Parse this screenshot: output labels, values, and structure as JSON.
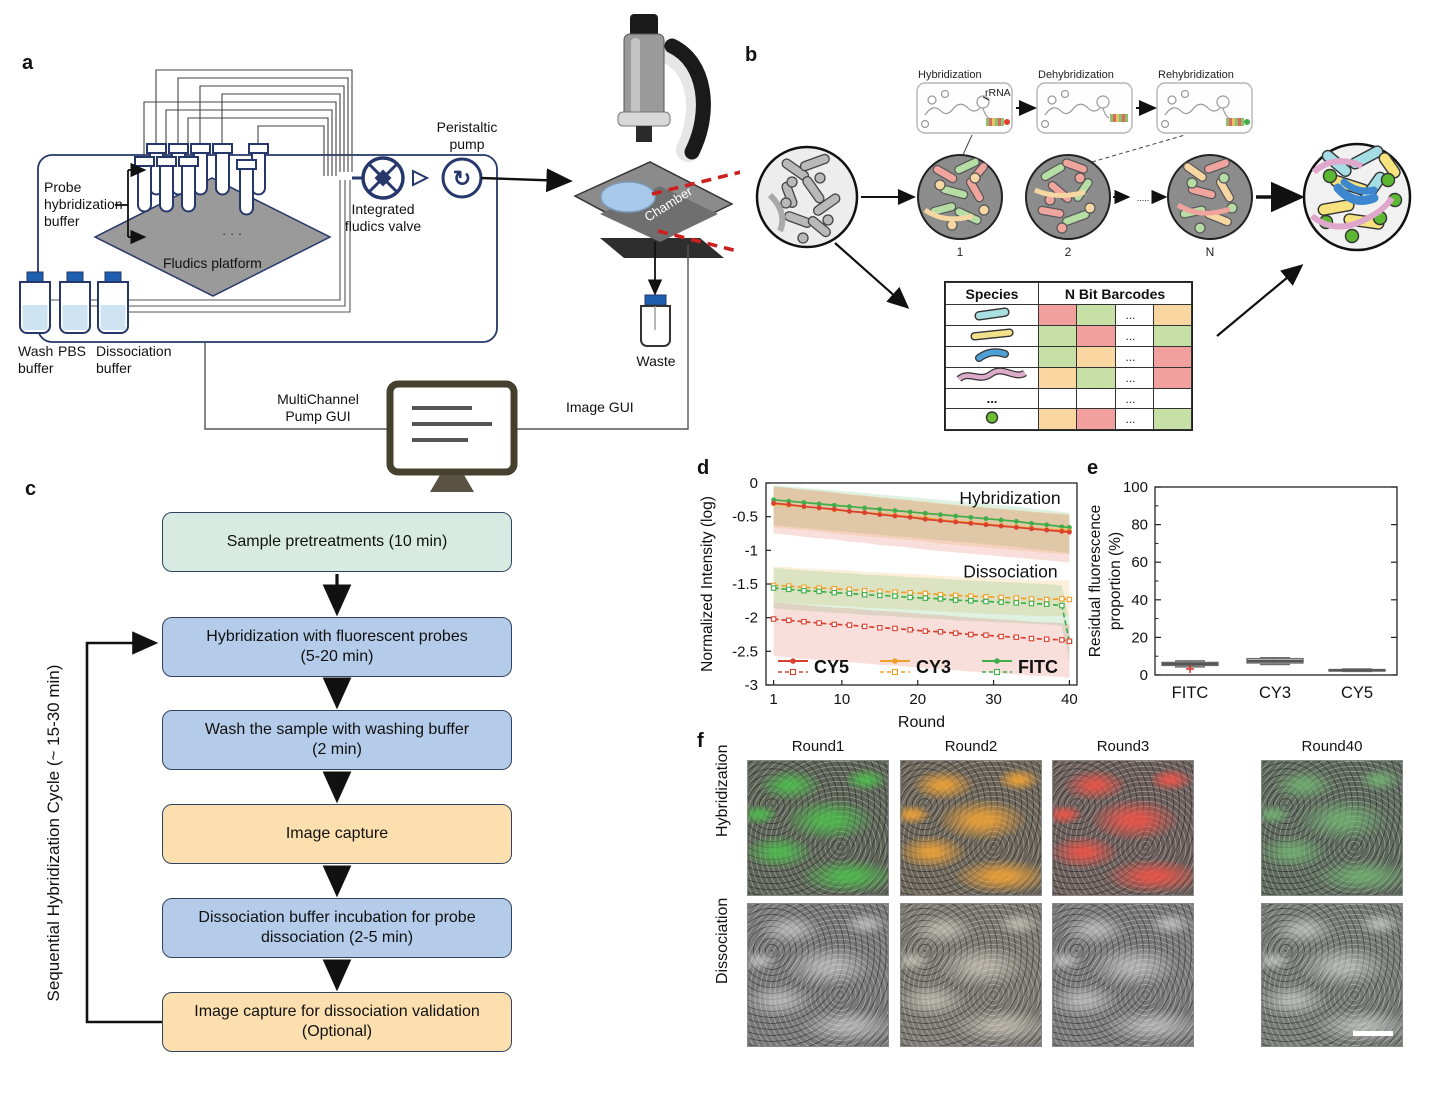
{
  "colors": {
    "navy": "#26376b",
    "flow_black": "#111111",
    "red_dash": "#cc2020",
    "chamber_blue": "#a9c9ea",
    "bottle_cap": "#1d5fae",
    "liquid": "#cfe4f2",
    "cy5": "#d9402f",
    "cy3": "#efa028",
    "fitc": "#3fae49",
    "box_teal": "#d8ebe3",
    "box_blue": "#b4cbe9",
    "box_orange": "#fbdfae"
  },
  "panel_a": {
    "label": "a",
    "probe_label": [
      "Probe",
      "hybridization",
      "buffer"
    ],
    "platform_label": "Fludics platform",
    "valve_label": [
      "Integrated",
      "fludics valve"
    ],
    "pump_label": [
      "Peristaltic",
      "pump"
    ],
    "wash_label": [
      "Wash",
      "buffer"
    ],
    "pbs_label": "PBS",
    "dissoc_label": [
      "Dissociation",
      "buffer"
    ],
    "chamber_label": "Chamber",
    "waste_label": "Waste",
    "pump_gui_label": [
      "MultiChannel",
      "Pump GUI"
    ],
    "image_gui_label": "Image GUI"
  },
  "panel_b": {
    "label": "b",
    "inset_titles": [
      "Hybridization",
      "Dehybridization",
      "Rehybridization"
    ],
    "rrna_label": "rRNA",
    "round_labels": [
      "1",
      "2",
      "N"
    ],
    "between_dots": ".....",
    "table": {
      "headers": [
        "Species",
        "N Bit Barcodes"
      ],
      "dots": "...",
      "species_dots": "...",
      "rows": [
        {
          "species": "rod-cyan",
          "bits": [
            "red",
            "green",
            "orange"
          ]
        },
        {
          "species": "rod-yellow",
          "bits": [
            "green",
            "red",
            "green"
          ]
        },
        {
          "species": "rod-blue",
          "bits": [
            "green",
            "orange",
            "red"
          ]
        },
        {
          "species": "worm-pink",
          "bits": [
            "orange",
            "green",
            "red"
          ]
        },
        {
          "species": "dots",
          "bits": [
            "none",
            "none",
            "none"
          ]
        },
        {
          "species": "circle-green",
          "bits": [
            "orange",
            "red",
            "green"
          ]
        }
      ],
      "bit_colors": {
        "red": "#f2a09d",
        "green": "#c7e0a5",
        "orange": "#fad7a1",
        "none": "#ffffff"
      }
    }
  },
  "panel_c": {
    "label": "c",
    "cycle_label": "Sequential Hybridization Cycle (~ 15-30 min)",
    "steps": [
      {
        "line1": "Sample pretreatments (10 min)",
        "line2": "",
        "color": "#d8ebe3"
      },
      {
        "line1": "Hybridization with fluorescent probes",
        "line2": "(5-20 min)",
        "color": "#b4cbe9"
      },
      {
        "line1": "Wash the sample with washing buffer",
        "line2": "(2 min)",
        "color": "#b4cbe9"
      },
      {
        "line1": "Image capture",
        "line2": "",
        "color": "#fbdfae"
      },
      {
        "line1": "Dissociation buffer incubation for probe",
        "line2": "dissociation (2-5 min)",
        "color": "#b4cbe9"
      },
      {
        "line1": "Image capture for dissociation validation",
        "line2": "(Optional)",
        "color": "#fbdfae"
      }
    ]
  },
  "panel_d_label": "d",
  "panel_e_label": "e",
  "chart_data": [
    {
      "id": "d",
      "type": "line",
      "xlabel": "Round",
      "ylabel": "Normalized Intensity (log)",
      "xlim": [
        0,
        41
      ],
      "ylim": [
        -3,
        0
      ],
      "xticks": [
        1,
        10,
        20,
        30,
        40
      ],
      "yticks": [
        0,
        -0.5,
        -1,
        -1.5,
        -2,
        -2.5,
        -3
      ],
      "annotations": [
        {
          "text": "Hybridization",
          "x": 25.5,
          "y": -0.31
        },
        {
          "text": "Dissociation",
          "x": 26,
          "y": -1.4
        }
      ],
      "legend": [
        {
          "name": "CY5",
          "color": "#d9402f"
        },
        {
          "name": "CY3",
          "color": "#efa028"
        },
        {
          "name": "FITC",
          "color": "#3fae49"
        }
      ],
      "x": [
        1,
        3,
        5,
        7,
        9,
        11,
        13,
        15,
        17,
        19,
        21,
        23,
        25,
        27,
        29,
        31,
        33,
        35,
        37,
        39,
        40
      ],
      "series": [
        {
          "name": "FITC hybridization",
          "color": "#3fae49",
          "style": "solid",
          "values": [
            -0.25,
            -0.27,
            -0.29,
            -0.31,
            -0.33,
            -0.35,
            -0.37,
            -0.39,
            -0.41,
            -0.43,
            -0.45,
            -0.47,
            -0.49,
            -0.51,
            -0.53,
            -0.55,
            -0.57,
            -0.6,
            -0.62,
            -0.65,
            -0.66
          ],
          "band": [
            0.22,
            0.38
          ]
        },
        {
          "name": "CY3 hybridization",
          "color": "#efa028",
          "style": "solid",
          "values": [
            -0.31,
            -0.33,
            -0.35,
            -0.37,
            -0.4,
            -0.42,
            -0.44,
            -0.46,
            -0.48,
            -0.5,
            -0.52,
            -0.55,
            -0.57,
            -0.59,
            -0.61,
            -0.63,
            -0.65,
            -0.67,
            -0.69,
            -0.7,
            -0.71
          ],
          "band": [
            0.25,
            0.35
          ]
        },
        {
          "name": "CY5 hybridization",
          "color": "#d9402f",
          "style": "solid",
          "values": [
            -0.3,
            -0.32,
            -0.35,
            -0.37,
            -0.39,
            -0.42,
            -0.44,
            -0.47,
            -0.49,
            -0.51,
            -0.54,
            -0.56,
            -0.58,
            -0.6,
            -0.62,
            -0.64,
            -0.66,
            -0.68,
            -0.7,
            -0.72,
            -0.73
          ],
          "band": [
            0.25,
            0.45
          ]
        },
        {
          "name": "CY3 dissociation",
          "color": "#efa028",
          "style": "dashed",
          "values": [
            -1.52,
            -1.53,
            -1.55,
            -1.56,
            -1.57,
            -1.58,
            -1.6,
            -1.61,
            -1.62,
            -1.63,
            -1.64,
            -1.66,
            -1.67,
            -1.68,
            -1.69,
            -1.7,
            -1.71,
            -1.72,
            -1.73,
            -1.72,
            -1.73
          ],
          "band": [
            0.28,
            0.25
          ]
        },
        {
          "name": "FITC dissociation",
          "color": "#3fae49",
          "style": "dashed",
          "values": [
            -1.56,
            -1.58,
            -1.6,
            -1.61,
            -1.63,
            -1.64,
            -1.66,
            -1.67,
            -1.68,
            -1.7,
            -1.71,
            -1.72,
            -1.74,
            -1.75,
            -1.76,
            -1.77,
            -1.78,
            -1.79,
            -1.8,
            -1.82,
            -2.35
          ],
          "band": [
            0.3,
            0.3
          ]
        },
        {
          "name": "CY5 dissociation",
          "color": "#d9402f",
          "style": "dashed",
          "values": [
            -2.02,
            -2.04,
            -2.06,
            -2.08,
            -2.1,
            -2.11,
            -2.13,
            -2.15,
            -2.16,
            -2.18,
            -2.2,
            -2.21,
            -2.23,
            -2.25,
            -2.26,
            -2.28,
            -2.29,
            -2.31,
            -2.32,
            -2.33,
            -2.35
          ],
          "band": [
            0.25,
            0.55
          ]
        }
      ]
    },
    {
      "id": "e",
      "type": "box",
      "ylabel_lines": [
        "Residual fluorescence",
        "proportion (%)"
      ],
      "ylim": [
        0,
        100
      ],
      "yticks": [
        0,
        20,
        40,
        60,
        80,
        100
      ],
      "categories": [
        "FITC",
        "CY3",
        "CY5"
      ],
      "boxes": [
        {
          "low": 4.3,
          "q1": 5.1,
          "median": 5.9,
          "q3": 6.7,
          "high": 7.5,
          "outliers": [
            3.2
          ]
        },
        {
          "low": 5.6,
          "q1": 6.4,
          "median": 7.4,
          "q3": 8.7,
          "high": 9.2,
          "outliers": []
        },
        {
          "low": 1.9,
          "q1": 2.2,
          "median": 2.5,
          "q3": 2.9,
          "high": 3.2,
          "outliers": []
        }
      ]
    }
  ],
  "panel_f": {
    "label": "f",
    "col_titles": [
      "Round1",
      "Round2",
      "Round3",
      "Round40"
    ],
    "row_labels": [
      "Hybridization",
      "Dissociation"
    ],
    "dots": "...",
    "tiles": [
      {
        "row": 0,
        "col": 0,
        "base": "#5e6458",
        "accent": "rgba(78,196,78,0.80)"
      },
      {
        "row": 0,
        "col": 1,
        "base": "#6b655a",
        "accent": "rgba(242,164,55,0.85)"
      },
      {
        "row": 0,
        "col": 2,
        "base": "#6b5f5c",
        "accent": "rgba(238,84,72,0.85)"
      },
      {
        "row": 0,
        "col": 3,
        "base": "#5f6a5e",
        "accent": "rgba(116,184,116,0.75)"
      },
      {
        "row": 1,
        "col": 0,
        "base": "#787878",
        "accent": "rgba(220,220,220,0.55)"
      },
      {
        "row": 1,
        "col": 1,
        "base": "#7b7972",
        "accent": "rgba(222,218,205,0.55)"
      },
      {
        "row": 1,
        "col": 2,
        "base": "#797979",
        "accent": "rgba(220,220,220,0.55)"
      },
      {
        "row": 1,
        "col": 3,
        "base": "#767a76",
        "accent": "rgba(218,224,218,0.55)"
      }
    ]
  }
}
